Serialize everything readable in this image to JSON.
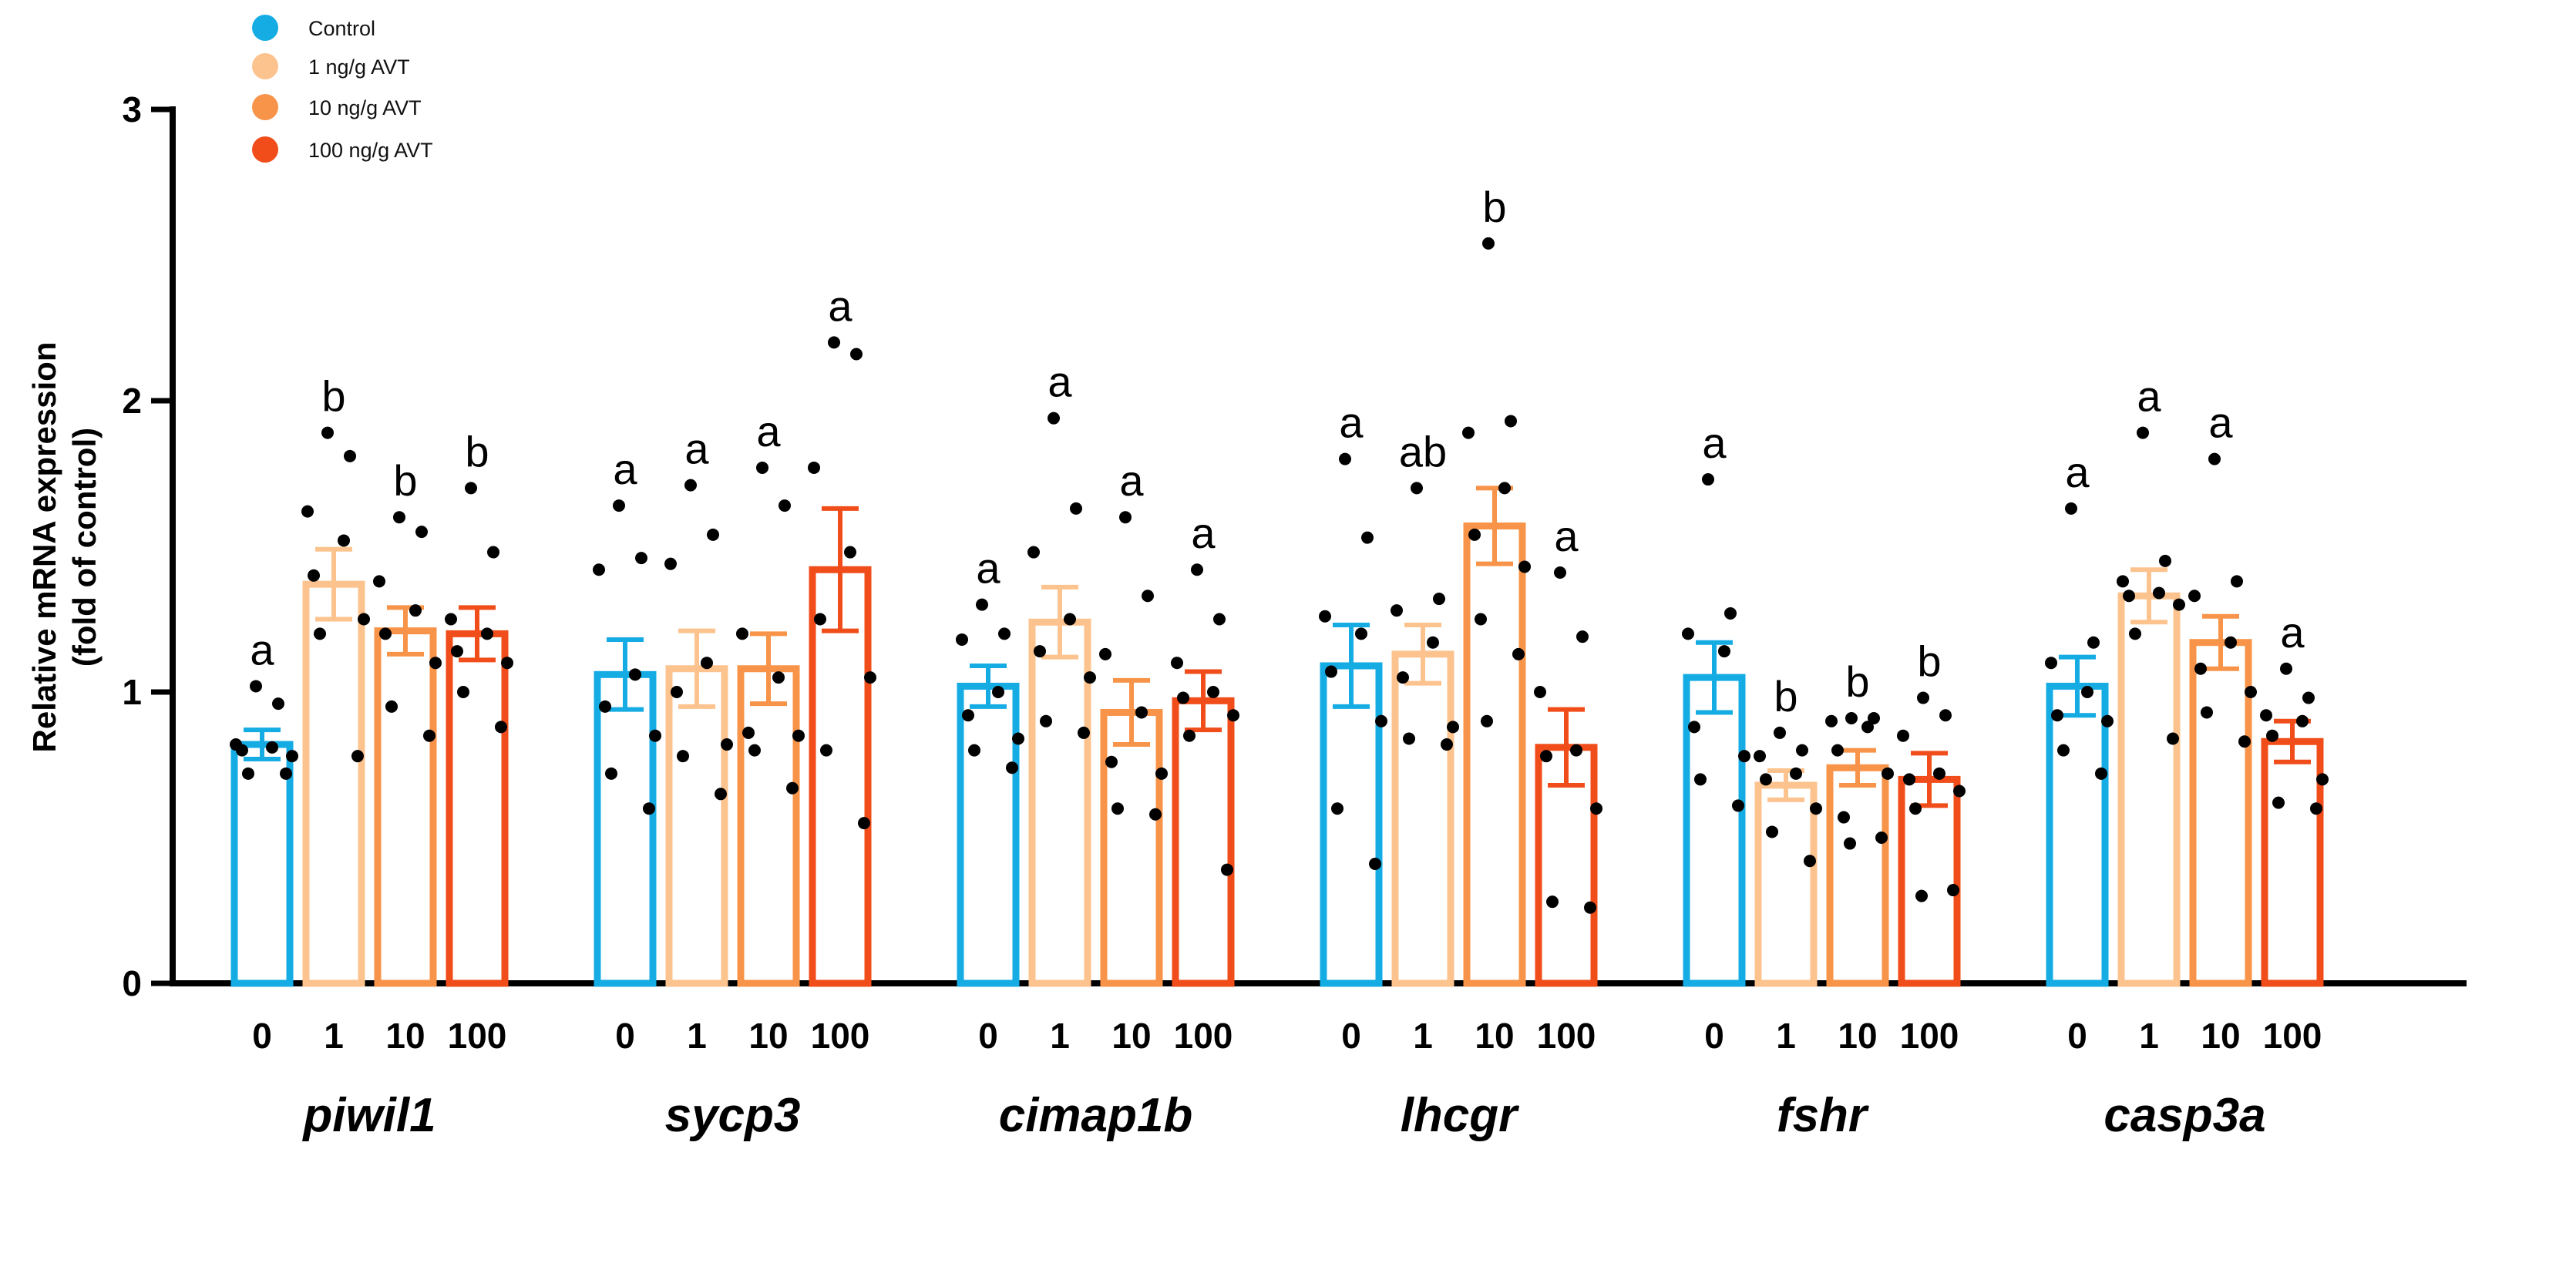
{
  "chart_data": {
    "type": "bar",
    "title": "",
    "ylabel": [
      "Relative mRNA expression",
      "(fold of control)"
    ],
    "xlabel": "",
    "ylim": [
      0,
      3
    ],
    "yticks": [
      "0",
      "1",
      "2",
      "3"
    ],
    "legend_position": "top-left",
    "groups": [
      "Control",
      "1 ng/g AVT",
      "10 ng/g AVT",
      "100 ng/g AVT"
    ],
    "colors": [
      "#15ace4",
      "#fcc38e",
      "#f8944a",
      "#f04d1a"
    ],
    "doses": [
      "0",
      "1",
      "10",
      "100"
    ],
    "genes": [
      {
        "name": "piwil1",
        "means": [
          0.82,
          1.37,
          1.21,
          1.2
        ],
        "sem": [
          0.05,
          0.12,
          0.08,
          0.09
        ],
        "letters": [
          "a",
          "b",
          "b",
          "b"
        ],
        "points": [
          [
            1.02,
            0.96,
            0.82,
            0.81,
            0.8,
            0.78,
            0.72,
            0.72
          ],
          [
            1.89,
            1.81,
            1.62,
            1.52,
            1.4,
            1.25,
            1.2,
            0.78
          ],
          [
            1.6,
            1.55,
            1.38,
            1.28,
            1.2,
            1.1,
            0.95,
            0.85
          ],
          [
            1.7,
            1.48,
            1.25,
            1.2,
            1.14,
            1.1,
            1.0,
            0.88
          ]
        ]
      },
      {
        "name": "sycp3",
        "means": [
          1.06,
          1.08,
          1.08,
          1.42
        ],
        "sem": [
          0.12,
          0.13,
          0.12,
          0.21
        ],
        "letters": [
          "a",
          "a",
          "a",
          "a"
        ],
        "points": [
          [
            1.64,
            1.46,
            1.42,
            1.06,
            0.95,
            0.85,
            0.72,
            0.6
          ],
          [
            1.71,
            1.54,
            1.44,
            1.1,
            1.0,
            0.82,
            0.78,
            0.65
          ],
          [
            1.77,
            1.64,
            1.2,
            1.05,
            0.86,
            0.85,
            0.8,
            0.67
          ],
          [
            2.2,
            2.16,
            1.77,
            1.48,
            1.25,
            1.05,
            0.8,
            0.55
          ]
        ]
      },
      {
        "name": "cimap1b",
        "means": [
          1.02,
          1.24,
          0.93,
          0.97
        ],
        "sem": [
          0.07,
          0.12,
          0.11,
          0.1
        ],
        "letters": [
          "a",
          "a",
          "a",
          "a"
        ],
        "points": [
          [
            1.3,
            1.2,
            1.18,
            1.0,
            0.92,
            0.84,
            0.8,
            0.74
          ],
          [
            1.94,
            1.63,
            1.48,
            1.25,
            1.14,
            1.05,
            0.9,
            0.86
          ],
          [
            1.6,
            1.33,
            1.13,
            0.93,
            0.76,
            0.72,
            0.6,
            0.58
          ],
          [
            1.42,
            1.25,
            1.1,
            1.0,
            0.98,
            0.92,
            0.85,
            0.39
          ]
        ]
      },
      {
        "name": "lhcgr",
        "means": [
          1.09,
          1.13,
          1.57,
          0.81
        ],
        "sem": [
          0.14,
          0.1,
          0.13,
          0.13
        ],
        "letters": [
          "a",
          "ab",
          "b",
          "a"
        ],
        "points": [
          [
            1.8,
            1.53,
            1.26,
            1.2,
            1.07,
            0.9,
            0.6,
            0.41
          ],
          [
            1.7,
            1.32,
            1.28,
            1.17,
            1.05,
            0.88,
            0.84,
            0.82
          ],
          [
            2.54,
            1.93,
            1.89,
            1.7,
            1.54,
            1.43,
            1.25,
            1.13,
            0.9
          ],
          [
            1.41,
            1.19,
            1.0,
            0.8,
            0.78,
            0.6,
            0.28,
            0.26
          ]
        ]
      },
      {
        "name": "fshr",
        "means": [
          1.05,
          0.68,
          0.74,
          0.7
        ],
        "sem": [
          0.12,
          0.05,
          0.06,
          0.09
        ],
        "letters": [
          "a",
          "b",
          "b",
          "b"
        ],
        "points": [
          [
            1.73,
            1.27,
            1.2,
            1.14,
            0.88,
            0.78,
            0.7,
            0.61
          ],
          [
            0.86,
            0.8,
            0.78,
            0.72,
            0.7,
            0.6,
            0.52,
            0.42
          ],
          [
            0.91,
            0.91,
            0.9,
            0.88,
            0.8,
            0.72,
            0.57,
            0.5,
            0.48
          ],
          [
            0.98,
            0.92,
            0.85,
            0.72,
            0.7,
            0.66,
            0.6,
            0.32,
            0.3
          ]
        ]
      },
      {
        "name": "casp3a",
        "means": [
          1.02,
          1.33,
          1.17,
          0.83
        ],
        "sem": [
          0.1,
          0.09,
          0.09,
          0.07
        ],
        "letters": [
          "a",
          "a",
          "a",
          "a"
        ],
        "points": [
          [
            1.63,
            1.17,
            1.1,
            1.0,
            0.92,
            0.9,
            0.8,
            0.72
          ],
          [
            1.89,
            1.45,
            1.38,
            1.34,
            1.33,
            1.3,
            1.2,
            0.84
          ],
          [
            1.8,
            1.38,
            1.33,
            1.17,
            1.08,
            1.0,
            0.93,
            0.83
          ],
          [
            1.08,
            0.98,
            0.92,
            0.9,
            0.85,
            0.7,
            0.62,
            0.6
          ]
        ]
      }
    ]
  }
}
